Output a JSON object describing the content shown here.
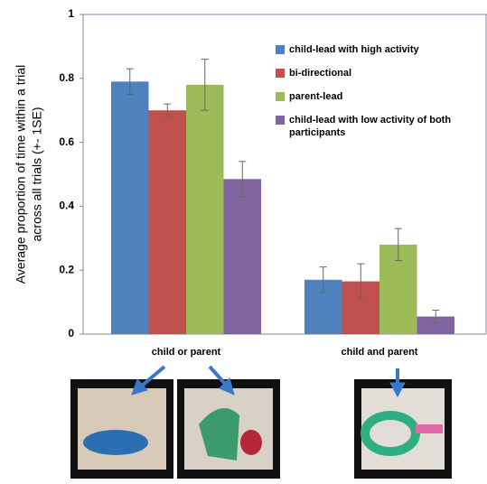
{
  "chart_data": {
    "type": "bar",
    "y_label": [
      "Average proportion of time within a trial",
      "across all trials (+- 1SE)"
    ],
    "categories": [
      "child or parent",
      "child and parent"
    ],
    "series": [
      {
        "name": "child-lead with high activity",
        "color": "#4f81bd",
        "values": [
          0.79,
          0.17
        ],
        "errors": [
          0.04,
          0.04
        ]
      },
      {
        "name": "bi-directional",
        "color": "#c0504d",
        "values": [
          0.7,
          0.165
        ],
        "errors": [
          0.02,
          0.055
        ]
      },
      {
        "name": "parent-lead",
        "color": "#9bbb59",
        "values": [
          0.78,
          0.28
        ],
        "errors": [
          0.08,
          0.05
        ]
      },
      {
        "name": "child-lead with low activity of both participants",
        "color": "#8064a2",
        "values": [
          0.485,
          0.055
        ],
        "errors": [
          0.055,
          0.02
        ]
      }
    ],
    "ylim": [
      0,
      1
    ],
    "yticks": [
      0,
      0.2,
      0.4,
      0.6,
      0.8,
      1
    ],
    "legend": "top-right"
  }
}
